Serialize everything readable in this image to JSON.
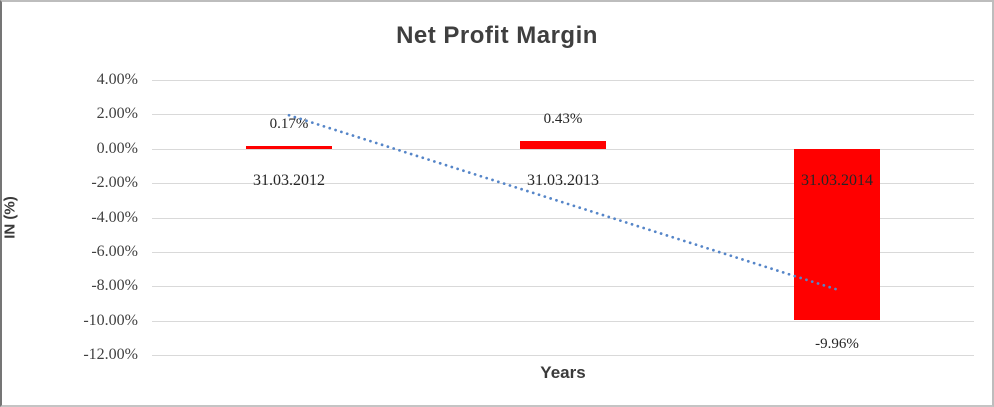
{
  "chart_data": {
    "type": "bar",
    "title": "Net Profit Margin",
    "ylabel": "IN (%)",
    "xlabel": "Years",
    "categories": [
      "31.03.2012",
      "31.03.2013",
      "31.03.2014"
    ],
    "values": [
      0.17,
      0.43,
      -9.96
    ],
    "data_labels": [
      "0.17%",
      "0.43%",
      "-9.96%"
    ],
    "ylim": [
      -12,
      4
    ],
    "ytick_step": 2,
    "ytick_labels": [
      "4.00%",
      "2.00%",
      "0.00%",
      "-2.00%",
      "-4.00%",
      "-6.00%",
      "-8.00%",
      "-10.00%",
      "-12.00%"
    ],
    "grid": true,
    "legend": "none",
    "bar_color": "#ff0000",
    "gridline_color": "#d9d9d9",
    "label_color": "#262626",
    "title_color": "#3f3f3f",
    "trendline": {
      "type": "linear",
      "style": "dotted",
      "color": "#5585c8",
      "start_value": 1.95,
      "end_value": -8.19
    }
  }
}
